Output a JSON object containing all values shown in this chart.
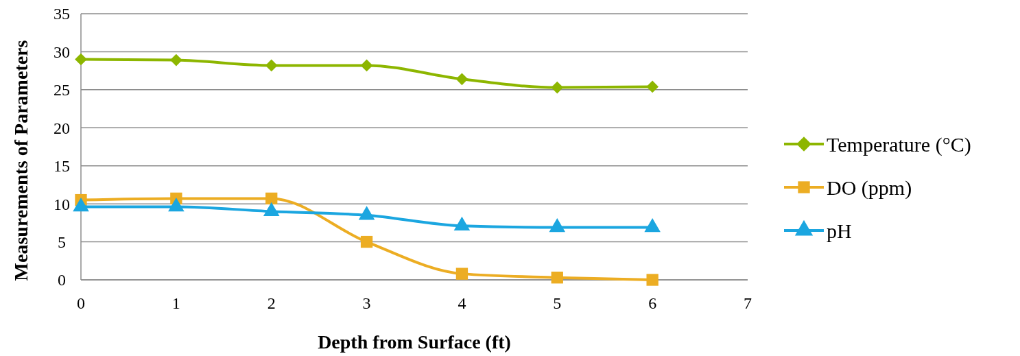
{
  "chart_data": {
    "type": "line",
    "xlabel": "Depth from Surface (ft)",
    "ylabel": "Measurements of Parameters",
    "x": [
      0,
      1,
      2,
      3,
      4,
      5,
      6
    ],
    "xlim": [
      0,
      7
    ],
    "xticks": [
      0,
      1,
      2,
      3,
      4,
      5,
      6,
      7
    ],
    "ylim": [
      0,
      35
    ],
    "yticks": [
      0,
      5,
      10,
      15,
      20,
      25,
      30,
      35
    ],
    "grid": "y",
    "legend": "right",
    "series": [
      {
        "name": "Temperature (°C)",
        "color": "#8db600",
        "marker": "diamond",
        "values": [
          29,
          28.9,
          28.2,
          28.2,
          26.4,
          25.3,
          25.4
        ]
      },
      {
        "name": "DO (ppm)",
        "color": "#ecad23",
        "marker": "square",
        "values": [
          10.5,
          10.7,
          10.7,
          5.0,
          0.8,
          0.3,
          0
        ]
      },
      {
        "name": "pH",
        "color": "#1ba6e0",
        "marker": "triangle",
        "values": [
          9.6,
          9.6,
          9.0,
          8.5,
          7.1,
          6.9,
          6.9
        ]
      }
    ]
  }
}
